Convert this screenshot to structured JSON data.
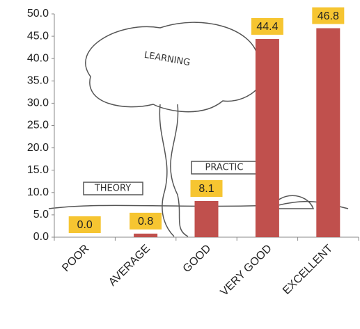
{
  "chart_data": {
    "type": "bar",
    "categories": [
      "POOR",
      "AVERAGE",
      "GOOD",
      "VERY GOOD",
      "EXCELLENT"
    ],
    "values": [
      0,
      0.8,
      8.1,
      44.4,
      46.8
    ],
    "value_labels": [
      "0.0",
      "0.8",
      "8.1",
      "44.4",
      "46.8"
    ],
    "color": "#c0504d",
    "ylim": [
      0,
      50
    ],
    "yticks": [
      {
        "value": 0,
        "label": "0.0"
      },
      {
        "value": 5,
        "label": "5.0"
      },
      {
        "value": 10,
        "label": "10.0"
      },
      {
        "value": 15,
        "label": "15.0"
      },
      {
        "value": 20,
        "label": "20.0"
      },
      {
        "value": 25,
        "label": "25.0"
      },
      {
        "value": 30,
        "label": "30.0"
      },
      {
        "value": 35,
        "label": "35.0"
      },
      {
        "value": 40,
        "label": "40.0"
      },
      {
        "value": 45,
        "label": "45.0"
      },
      {
        "value": 50,
        "label": "50.0"
      }
    ],
    "grid": false
  },
  "illustration": {
    "labels": [
      "LEARNING",
      "THEORY",
      "PRACTIC"
    ]
  }
}
